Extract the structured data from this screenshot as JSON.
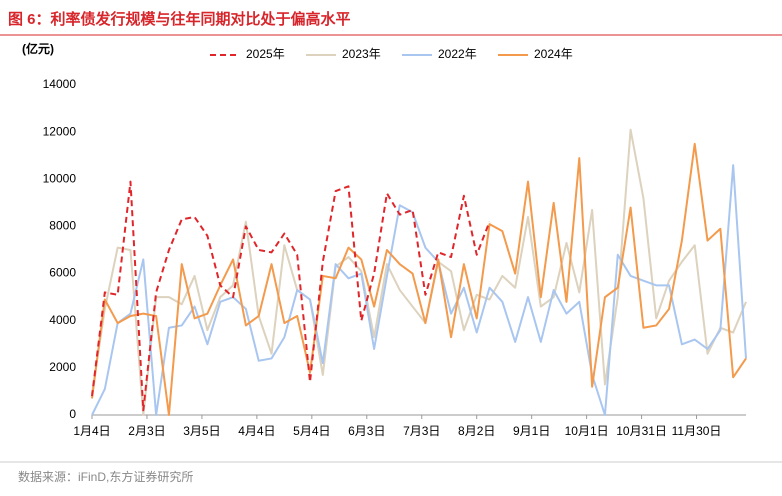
{
  "chart_data": {
    "type": "line",
    "title": "图 6：利率债发行规模与往年同期对比处于偏高水平",
    "y_label": "(亿元)",
    "source": "数据来源：iFinD,东方证券研究所",
    "x": [
      0,
      7,
      14,
      21,
      28,
      35,
      42,
      49,
      56,
      63,
      70,
      77,
      84,
      91,
      98,
      105,
      112,
      119,
      126,
      133,
      140,
      147,
      154,
      161,
      168,
      175,
      182,
      189,
      196,
      203,
      210,
      217,
      224,
      231,
      238,
      245,
      252,
      259,
      266,
      273,
      280,
      287,
      294,
      301,
      308,
      315,
      322,
      329,
      336,
      343,
      350,
      357
    ],
    "xlim": [
      0,
      357
    ],
    "xticks": [
      {
        "value": 0,
        "label": "1月4日"
      },
      {
        "value": 30,
        "label": "2月3日"
      },
      {
        "value": 60,
        "label": "3月5日"
      },
      {
        "value": 90,
        "label": "4月4日"
      },
      {
        "value": 120,
        "label": "5月4日"
      },
      {
        "value": 150,
        "label": "6月3日"
      },
      {
        "value": 180,
        "label": "7月3日"
      },
      {
        "value": 210,
        "label": "8月2日"
      },
      {
        "value": 240,
        "label": "9月1日"
      },
      {
        "value": 270,
        "label": "10月1日"
      },
      {
        "value": 300,
        "label": "10月31日"
      },
      {
        "value": 330,
        "label": "11月30日"
      }
    ],
    "ylim": [
      0,
      14000
    ],
    "yticks": [
      0,
      2000,
      4000,
      6000,
      8000,
      10000,
      12000,
      14000
    ],
    "series": [
      {
        "name": "2025年",
        "color": "#e0262a",
        "dashed": true,
        "values": [
          800,
          5200,
          5100,
          9900,
          200,
          5200,
          7000,
          8300,
          8400,
          7600,
          5500,
          5000,
          8000,
          7000,
          6900,
          7700,
          6800,
          1400,
          6500,
          9500,
          9700,
          4000,
          6000,
          9400,
          8500,
          8700,
          5100,
          6900,
          6700,
          9300,
          6800,
          8200,
          null,
          null,
          null,
          null,
          null,
          null,
          null,
          null,
          null,
          null,
          null,
          null,
          null,
          null,
          null,
          null,
          null,
          null,
          null,
          null
        ]
      },
      {
        "name": "2023年",
        "color": "#dcd2bd",
        "dashed": false,
        "values": [
          900,
          4500,
          7100,
          7000,
          0,
          5000,
          5000,
          4700,
          5900,
          3600,
          5000,
          5500,
          8200,
          4200,
          2600,
          7200,
          5300,
          4900,
          1700,
          6300,
          6700,
          6100,
          3300,
          6400,
          5300,
          4600,
          3900,
          6500,
          6100,
          3600,
          5100,
          4900,
          5900,
          5400,
          8400,
          4600,
          5000,
          7300,
          5200,
          8700,
          1300,
          5000,
          12100,
          9200,
          4100,
          5700,
          6500,
          7200,
          2600,
          3700,
          3500,
          4800
        ]
      },
      {
        "name": "2022年",
        "color": "#a9c6f0",
        "dashed": false,
        "values": [
          0,
          1100,
          3900,
          4300,
          6600,
          0,
          3700,
          3800,
          4600,
          3000,
          4800,
          5000,
          4500,
          2300,
          2400,
          3300,
          5300,
          4900,
          2200,
          6400,
          5800,
          6000,
          2800,
          5900,
          8900,
          8600,
          7100,
          6500,
          4300,
          5400,
          3500,
          5400,
          4800,
          3100,
          5000,
          3100,
          5300,
          4300,
          4800,
          1700,
          0,
          6800,
          5900,
          5700,
          5500,
          5500,
          3000,
          3200,
          2800,
          3600,
          10600,
          2400
        ]
      },
      {
        "name": "2024年",
        "color": "#f39a4c",
        "dashed": false,
        "values": [
          700,
          4900,
          3900,
          4200,
          4300,
          4200,
          0,
          6400,
          4100,
          4300,
          5500,
          6600,
          3800,
          4200,
          6400,
          3900,
          4200,
          1800,
          5900,
          5800,
          7100,
          6600,
          4600,
          7000,
          6400,
          6000,
          3900,
          6600,
          3300,
          6400,
          4100,
          8100,
          7800,
          6000,
          9900,
          5000,
          9000,
          4800,
          10900,
          1200,
          5000,
          5400,
          8800,
          3700,
          3800,
          4500,
          7400,
          11500,
          7400,
          7900,
          1600,
          2400
        ]
      }
    ]
  }
}
